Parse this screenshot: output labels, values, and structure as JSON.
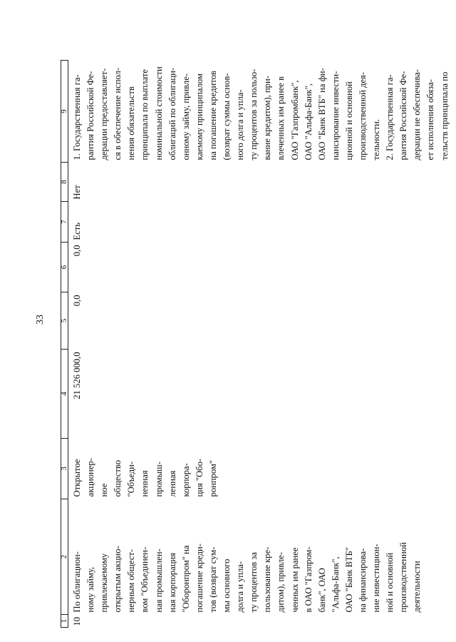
{
  "page_number": "33",
  "table": {
    "headers": [
      "1",
      "2",
      "3",
      "4",
      "5",
      "6",
      "7",
      "8",
      "9"
    ],
    "row": {
      "num": "10",
      "description": "По облигацион-\nному займу,\nпривлекаемому\nоткрытым акцио-\nнерным общест-\nвом \"Объединен-\nная промышлен-\nная корпорация\n\"Оборонпром\" на\nпогашение креди-\nтов (возврат сум-\nмы основного\nдолга и упла-\nту процентов за\nпользование кре-\nдитом), привле-\nченных им ранее\nв ОАО \"Газпром-\nбанк\", ОАО\n\"Альфа-Банк\",\nОАО \"Банк ВТБ\"\nна финансирова-\nние инвестицион-\nной и основной\nпроизводственной\nдеятельности",
      "principal": "Открытое\nакционер-\nное\nобщество\n\"Объеди-\nненная\nпромыш-\nленная\nкорпора-\nция \"Обо-\nронпром\"",
      "amount": "21 526 000,0",
      "col5": "0,0",
      "col6": "0,0",
      "col7": "Есть",
      "col8": "Нет",
      "conditions": "1. Государственная га-\nрантия Российской Фе-\nдерации предоставляет-\nся в обеспечение испол-\nнения обязательств\nпринципала по выплате\nноминальной стоимости\nоблигаций по облигаци-\nонному займу, привле-\nкаемому принципалом\nна погашение кредитов\n(возврат суммы основ-\nного долга и упла-\nту процентов за пользо-\nвание кредитом), при-\nвлеченных им ранее в\nОАО \"Газпромбанк\",\nОАО \"Альфа-Банк\",\nОАО \"Банк ВТБ\" на фи-\nнансирование инвести-\nционной и основной\nпроизводственной дея-\nтельности.\n2. Государственная га-\nрантия Российской Фе-\nдерации не обеспечива-\nет исполнения обяза-\nтельств принципала по"
    }
  }
}
